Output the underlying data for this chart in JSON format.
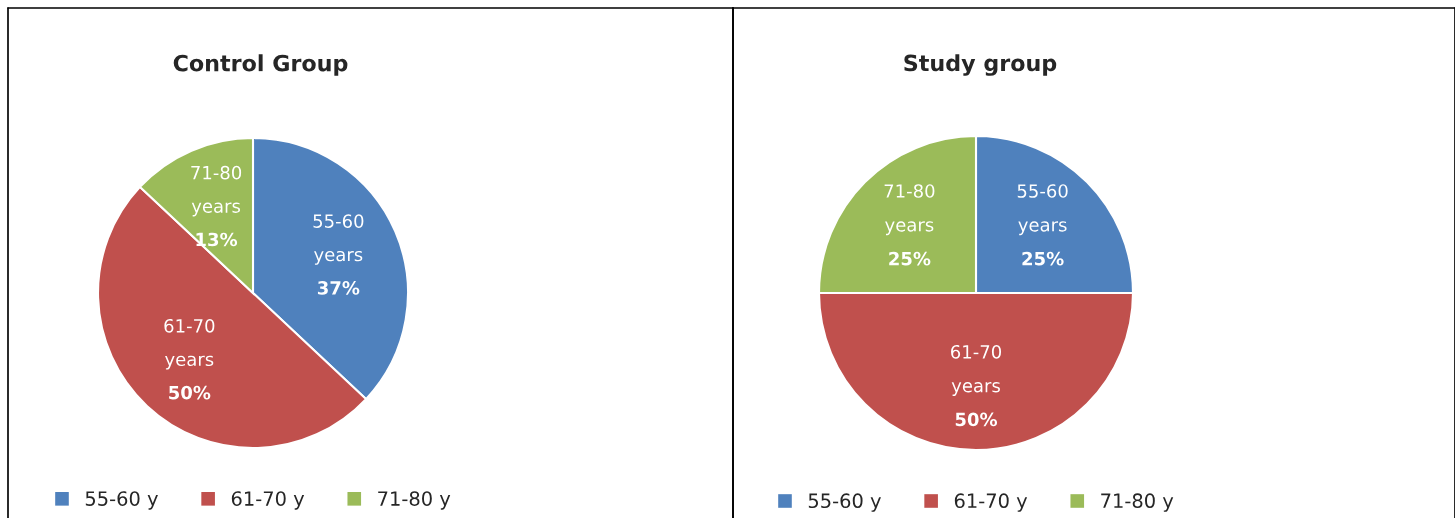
{
  "chart_data": [
    {
      "type": "pie",
      "title": "Control Group",
      "categories": [
        "55-60 y",
        "61-70 y",
        "71-80 y"
      ],
      "values": [
        37,
        50,
        13
      ],
      "colors": [
        "#4f81bd",
        "#c0504d",
        "#9bbb59"
      ],
      "value_labels": [
        "55-60\nyears\n37%",
        "61-70\nyears\n50%",
        "71-80\nyears\n13%"
      ],
      "legend": "bottom"
    },
    {
      "type": "pie",
      "title": "Study group",
      "categories": [
        "55-60 y",
        "61-70 y",
        "71-80 y"
      ],
      "values": [
        25,
        50,
        25
      ],
      "colors": [
        "#4f81bd",
        "#c0504d",
        "#9bbb59"
      ],
      "value_labels": [
        "55-60\nyears\n25%",
        "61-70\nyears\n50%",
        "71-80\nyears\n25%"
      ],
      "legend": "bottom"
    }
  ]
}
